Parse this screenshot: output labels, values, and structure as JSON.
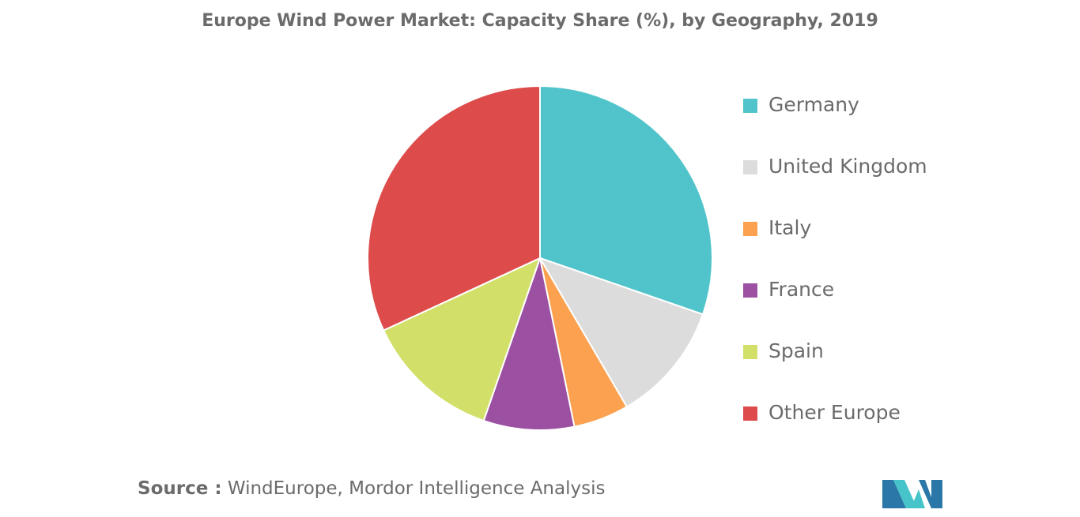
{
  "title": "Europe Wind Power Market: Capacity Share (%), by Geography, 2019",
  "source": {
    "label": "Source :",
    "text": "WindEurope, Mordor Intelligence Analysis"
  },
  "chart_data": {
    "type": "pie",
    "title": "Europe Wind Power Market: Capacity Share (%), by Geography, 2019",
    "legend_position": "right",
    "start_angle_deg": 0,
    "direction": "clockwise",
    "categories": [
      "Germany",
      "United Kingdom",
      "Italy",
      "France",
      "Spain",
      "Other Europe"
    ],
    "values": [
      30.3,
      11.3,
      5.2,
      8.5,
      12.8,
      31.9
    ],
    "colors": [
      "#50c4ca",
      "#dcdcdc",
      "#fba14f",
      "#9c50a1",
      "#d2e06a",
      "#dd4b4b"
    ]
  },
  "logo": {
    "icon": "mordor-intelligence-logo",
    "colors": [
      "#2a77a8",
      "#46c4c9"
    ]
  }
}
